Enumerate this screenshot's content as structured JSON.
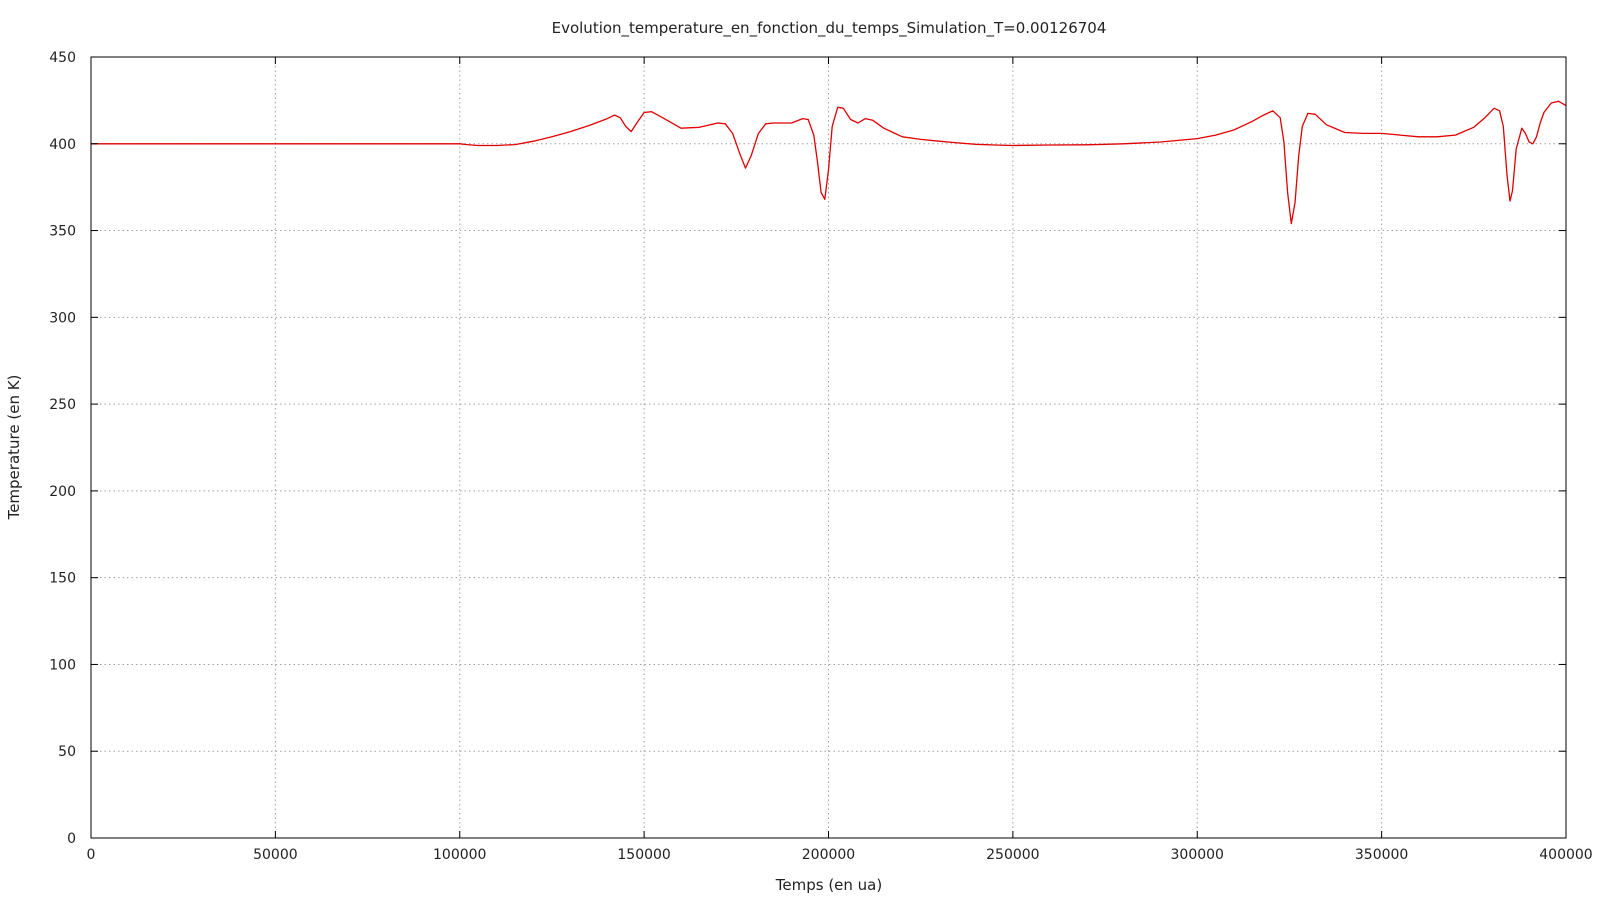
{
  "chart_data": {
    "type": "line",
    "title": "Evolution_temperature_en_fonction_du_temps_Simulation_T=0.00126704",
    "xlabel": "Temps (en ua)",
    "ylabel": "Temperature (en K)",
    "xlim": [
      0,
      400000
    ],
    "ylim": [
      0,
      450
    ],
    "xticks": [
      0,
      50000,
      100000,
      150000,
      200000,
      250000,
      300000,
      350000,
      400000
    ],
    "yticks": [
      0,
      50,
      100,
      150,
      200,
      250,
      300,
      350,
      400,
      450
    ],
    "grid": true,
    "line_color": "#e00000",
    "series": [
      {
        "x": [
          0,
          50000,
          100000,
          102000,
          105000,
          110000,
          115000,
          120000,
          125000,
          130000,
          135000,
          140000,
          142000,
          143500,
          145000,
          146500,
          148000,
          150000,
          152000,
          155000,
          160000,
          165000,
          170000,
          172000,
          174000,
          176000,
          177500,
          179000,
          181000,
          183000,
          185000,
          190000,
          193000,
          194500,
          196000,
          197000,
          198000,
          199000,
          200000,
          201000,
          202500,
          204000,
          206000,
          208000,
          210000,
          212000,
          215000,
          220000,
          225000,
          230000,
          235000,
          240000,
          245000,
          250000,
          260000,
          270000,
          280000,
          290000,
          300000,
          305000,
          310000,
          315000,
          318000,
          320500,
          322500,
          323500,
          324500,
          325500,
          326500,
          327500,
          328500,
          330000,
          332000,
          335000,
          340000,
          345000,
          350000,
          355000,
          360000,
          365000,
          370000,
          375000,
          378000,
          380500,
          382000,
          383000,
          384000,
          384800,
          385500,
          386500,
          388000,
          389000,
          390000,
          391000,
          392000,
          393000,
          394000,
          396000,
          398000,
          400000
        ],
        "y": [
          400,
          400,
          400,
          399.5,
          399,
          399,
          399.5,
          401.5,
          404,
          407,
          410.5,
          414.5,
          416.5,
          415,
          410,
          407,
          412,
          418,
          418.5,
          415,
          409,
          409.5,
          412,
          411.5,
          406,
          394,
          386,
          393,
          406,
          411.5,
          412,
          412,
          414.5,
          414,
          405,
          390,
          372,
          368,
          385,
          410,
          421,
          420.5,
          414,
          412,
          414.5,
          413.5,
          409,
          404,
          402.5,
          401.5,
          400.5,
          399.7,
          399.3,
          399,
          399.3,
          399.4,
          400,
          401,
          403,
          405,
          408,
          413,
          416.5,
          419,
          415,
          401,
          372,
          354,
          366,
          393,
          410,
          417.5,
          417,
          411,
          406.5,
          406,
          406,
          405,
          404,
          404,
          405,
          409.5,
          415,
          420.5,
          419,
          410,
          382,
          367,
          373,
          397,
          409,
          406,
          401,
          400,
          404,
          412,
          418,
          423.5,
          424.5,
          422
        ]
      }
    ]
  }
}
